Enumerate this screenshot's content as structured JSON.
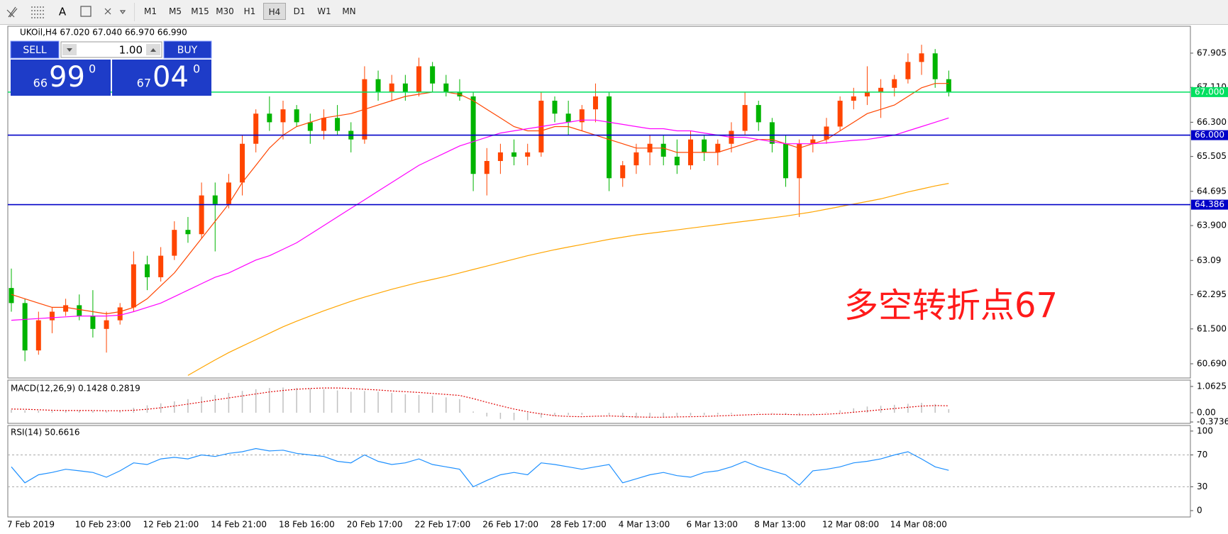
{
  "toolbar": {
    "text_tool": "A",
    "timeframes": [
      "M1",
      "M5",
      "M15",
      "M30",
      "H1",
      "H4",
      "D1",
      "W1",
      "MN"
    ],
    "active": "H4"
  },
  "trade_panel": {
    "sell": "SELL",
    "lot": "1.00",
    "buy": "BUY",
    "bid": {
      "big": "66",
      "pips": "99",
      "frac": "0"
    },
    "ask": {
      "big": "67",
      "pips": "04",
      "frac": "0"
    }
  },
  "chart_data": [
    {
      "type": "candlestick",
      "title": "UKOil,H4 67.020 67.040 66.970 66.990",
      "categories": [
        "7 Feb 2019",
        null,
        null,
        null,
        null,
        "10 Feb 23:00",
        null,
        null,
        null,
        null,
        "12 Feb 21:00",
        null,
        null,
        null,
        null,
        "14 Feb 21:00",
        null,
        null,
        null,
        null,
        "18 Feb 16:00",
        null,
        null,
        null,
        null,
        "20 Feb 17:00",
        null,
        null,
        null,
        null,
        "22 Feb 17:00",
        null,
        null,
        null,
        null,
        "26 Feb 17:00",
        null,
        null,
        null,
        null,
        "28 Feb 17:00",
        null,
        null,
        null,
        null,
        "4 Mar 13:00",
        null,
        null,
        null,
        null,
        "6 Mar 13:00",
        null,
        null,
        null,
        null,
        "8 Mar 13:00",
        null,
        null,
        null,
        null,
        "12 Mar 08:00",
        null,
        null,
        null,
        null,
        "14 Mar 08:00",
        null,
        null,
        null,
        null
      ],
      "open": [
        62.45,
        62.1,
        61.0,
        61.7,
        61.9,
        62.05,
        61.8,
        61.5,
        61.7,
        62.0,
        63.0,
        62.7,
        63.2,
        63.8,
        63.7,
        64.6,
        64.4,
        64.9,
        65.8,
        66.5,
        66.3,
        66.6,
        66.3,
        66.1,
        66.4,
        66.1,
        65.9,
        67.3,
        67.0,
        67.2,
        67.0,
        67.6,
        67.2,
        67.0,
        66.9,
        65.1,
        65.4,
        65.6,
        65.5,
        65.6,
        66.8,
        66.5,
        66.3,
        66.6,
        66.9,
        65.0,
        65.3,
        65.6,
        65.8,
        65.5,
        65.3,
        65.9,
        65.6,
        65.8,
        66.1,
        66.7,
        66.3,
        65.8,
        65.0,
        65.8,
        65.9,
        66.2,
        66.8,
        66.9,
        67.0,
        67.1,
        67.3,
        67.7,
        67.9,
        67.3
      ],
      "high": [
        62.9,
        62.2,
        61.9,
        62.0,
        62.2,
        62.3,
        62.4,
        61.9,
        62.1,
        63.3,
        63.2,
        63.4,
        64.0,
        64.1,
        64.9,
        64.9,
        65.1,
        66.0,
        66.6,
        66.9,
        66.8,
        66.7,
        66.5,
        66.6,
        66.7,
        66.3,
        67.6,
        67.5,
        67.4,
        67.4,
        67.8,
        67.7,
        67.4,
        67.3,
        67.0,
        65.7,
        65.8,
        65.9,
        65.8,
        67.0,
        66.9,
        66.8,
        66.7,
        67.2,
        67.0,
        65.4,
        65.8,
        66.0,
        66.0,
        65.9,
        66.1,
        66.0,
        65.9,
        66.3,
        67.0,
        66.8,
        66.4,
        66.0,
        65.9,
        66.0,
        66.4,
        66.9,
        67.1,
        67.6,
        67.3,
        67.4,
        67.9,
        68.1,
        68.0,
        67.5
      ],
      "low": [
        61.9,
        60.75,
        60.9,
        61.4,
        61.8,
        61.7,
        61.3,
        60.95,
        61.6,
        61.9,
        62.4,
        62.6,
        63.1,
        63.5,
        63.6,
        63.3,
        64.3,
        64.6,
        65.6,
        66.1,
        65.9,
        66.2,
        65.8,
        65.9,
        66.0,
        65.6,
        65.8,
        66.8,
        66.8,
        66.8,
        66.9,
        67.0,
        66.9,
        66.8,
        64.7,
        64.6,
        65.1,
        65.3,
        65.3,
        65.5,
        66.3,
        66.0,
        66.1,
        66.3,
        64.7,
        64.8,
        65.1,
        65.3,
        65.3,
        65.1,
        65.2,
        65.4,
        65.3,
        65.6,
        66.0,
        66.1,
        65.6,
        64.8,
        64.1,
        65.6,
        65.8,
        66.1,
        66.6,
        66.7,
        66.4,
        66.9,
        67.2,
        67.4,
        67.1,
        66.9
      ],
      "close": [
        62.1,
        61.0,
        61.7,
        61.9,
        62.05,
        61.8,
        61.5,
        61.7,
        62.0,
        63.0,
        62.7,
        63.2,
        63.8,
        63.7,
        64.6,
        64.4,
        64.9,
        65.8,
        66.5,
        66.3,
        66.6,
        66.3,
        66.1,
        66.4,
        66.1,
        65.9,
        67.3,
        67.0,
        67.2,
        67.0,
        67.6,
        67.2,
        67.0,
        66.9,
        65.1,
        65.4,
        65.6,
        65.5,
        65.6,
        66.8,
        66.5,
        66.3,
        66.6,
        66.9,
        65.0,
        65.3,
        65.6,
        65.8,
        65.5,
        65.3,
        65.9,
        65.6,
        65.8,
        66.1,
        66.7,
        66.3,
        65.8,
        65.0,
        65.8,
        65.9,
        66.2,
        66.8,
        66.9,
        67.0,
        67.1,
        67.3,
        67.7,
        67.9,
        67.3,
        66.99
      ],
      "up_color": "#ff4500",
      "down_color": "#00b400",
      "lines": [
        {
          "color": "#ff4500",
          "values": [
            62.3,
            62.2,
            62.1,
            62.0,
            62.0,
            61.95,
            61.9,
            61.85,
            61.9,
            62.0,
            62.2,
            62.5,
            62.8,
            63.2,
            63.6,
            64.0,
            64.4,
            64.9,
            65.3,
            65.7,
            66.0,
            66.2,
            66.3,
            66.4,
            66.45,
            66.5,
            66.6,
            66.7,
            66.8,
            66.9,
            66.95,
            67.0,
            67.0,
            66.95,
            66.8,
            66.6,
            66.4,
            66.2,
            66.1,
            66.1,
            66.2,
            66.2,
            66.1,
            66.0,
            65.9,
            65.8,
            65.7,
            65.7,
            65.7,
            65.6,
            65.6,
            65.6,
            65.6,
            65.7,
            65.8,
            65.9,
            65.9,
            65.8,
            65.7,
            65.8,
            65.9,
            66.1,
            66.3,
            66.5,
            66.6,
            66.7,
            66.9,
            67.1,
            67.2,
            67.2
          ]
        },
        {
          "color": "#ff00ff",
          "values": [
            61.7,
            61.72,
            61.74,
            61.76,
            61.78,
            61.8,
            61.8,
            61.8,
            61.82,
            61.9,
            62.0,
            62.1,
            62.25,
            62.4,
            62.55,
            62.7,
            62.8,
            62.95,
            63.1,
            63.2,
            63.35,
            63.5,
            63.7,
            63.9,
            64.1,
            64.3,
            64.5,
            64.7,
            64.9,
            65.1,
            65.3,
            65.45,
            65.6,
            65.75,
            65.85,
            65.95,
            66.05,
            66.1,
            66.15,
            66.2,
            66.25,
            66.3,
            66.35,
            66.35,
            66.3,
            66.25,
            66.2,
            66.15,
            66.15,
            66.1,
            66.1,
            66.05,
            66.0,
            65.95,
            65.95,
            65.9,
            65.85,
            65.8,
            65.8,
            65.8,
            65.82,
            65.85,
            65.88,
            65.9,
            65.95,
            66.0,
            66.1,
            66.2,
            66.3,
            66.4
          ]
        },
        {
          "color": "#ffa500",
          "values": [
            null,
            null,
            null,
            null,
            null,
            null,
            null,
            null,
            null,
            null,
            null,
            null,
            null,
            60.42,
            60.6,
            60.78,
            60.95,
            61.1,
            61.25,
            61.4,
            61.55,
            61.68,
            61.8,
            61.92,
            62.03,
            62.14,
            62.24,
            62.33,
            62.42,
            62.5,
            62.58,
            62.65,
            62.72,
            62.8,
            62.88,
            62.96,
            63.04,
            63.12,
            63.2,
            63.27,
            63.34,
            63.4,
            63.46,
            63.52,
            63.58,
            63.63,
            63.68,
            63.72,
            63.76,
            63.8,
            63.84,
            63.88,
            63.92,
            63.96,
            64.0,
            64.04,
            64.08,
            64.12,
            64.17,
            64.22,
            64.28,
            64.34,
            64.4,
            64.46,
            64.52,
            64.6,
            64.68,
            64.75,
            64.82,
            64.88
          ]
        }
      ],
      "levels": [
        {
          "value": 67,
          "label": "67.000",
          "color": "#00e060"
        },
        {
          "value": 66,
          "label": "66.000",
          "color": "#0000c8"
        },
        {
          "value": 64.386,
          "label": "64.386",
          "color": "#0000c8"
        }
      ],
      "annotation": "多空转折点67",
      "annotation_color": "#ff1a1a",
      "ylim": [
        60.36,
        68.53
      ],
      "yticks": [
        {
          "value": 60.69,
          "label": "60.690"
        },
        {
          "value": 61.5,
          "label": "61.500"
        },
        62.295,
        63.09,
        {
          "value": 63.9,
          "label": "63.900"
        },
        64.695,
        65.505,
        {
          "value": 66.3,
          "label": "66.300"
        },
        {
          "value": 67.11,
          "label": "67.110"
        },
        67.905
      ]
    },
    {
      "type": "macd",
      "title": "MACD(12,26,9) 0.1428 0.2819",
      "series": [
        {
          "color": "#c0c0c0",
          "values": [
            0.12,
            0.1,
            0.08,
            0.08,
            0.1,
            0.1,
            0.08,
            0.06,
            0.1,
            0.2,
            0.3,
            0.38,
            0.46,
            0.55,
            0.65,
            0.72,
            0.8,
            0.88,
            0.95,
            1.0,
            1.02,
            1.0,
            0.98,
            0.95,
            0.9,
            0.85,
            0.88,
            0.85,
            0.8,
            0.75,
            0.72,
            0.68,
            0.62,
            0.55,
            0.05,
            -0.15,
            -0.25,
            -0.3,
            -0.3,
            -0.2,
            -0.12,
            -0.1,
            -0.08,
            0.0,
            -0.1,
            -0.2,
            -0.22,
            -0.2,
            -0.18,
            -0.15,
            -0.12,
            -0.1,
            -0.08,
            -0.05,
            0.0,
            0.02,
            -0.02,
            -0.08,
            -0.12,
            -0.05,
            0.02,
            0.1,
            0.18,
            0.25,
            0.28,
            0.32,
            0.36,
            0.4,
            0.35,
            0.1428
          ]
        },
        {
          "color": "#e00000",
          "values": [
            0.15,
            0.14,
            0.12,
            0.1,
            0.09,
            0.09,
            0.09,
            0.08,
            0.08,
            0.1,
            0.14,
            0.2,
            0.27,
            0.35,
            0.43,
            0.52,
            0.6,
            0.68,
            0.76,
            0.84,
            0.9,
            0.95,
            0.98,
            1.0,
            1.0,
            0.98,
            0.95,
            0.92,
            0.88,
            0.85,
            0.82,
            0.78,
            0.74,
            0.7,
            0.57,
            0.42,
            0.28,
            0.15,
            0.04,
            -0.05,
            -0.12,
            -0.15,
            -0.16,
            -0.14,
            -0.13,
            -0.15,
            -0.17,
            -0.18,
            -0.18,
            -0.17,
            -0.16,
            -0.15,
            -0.13,
            -0.11,
            -0.09,
            -0.07,
            -0.06,
            -0.07,
            -0.08,
            -0.08,
            -0.06,
            -0.03,
            0.02,
            0.07,
            0.12,
            0.17,
            0.22,
            0.27,
            0.29,
            0.2819
          ]
        }
      ],
      "ylim": [
        -0.43,
        1.29
      ],
      "yticks": [
        -0.3736,
        {
          "value": 0,
          "label": "0.00"
        },
        1.0625
      ]
    },
    {
      "type": "line",
      "title": "RSI(14) 50.6616",
      "color": "#1e90ff",
      "values": [
        55,
        35,
        45,
        48,
        52,
        50,
        48,
        42,
        50,
        60,
        58,
        65,
        67,
        65,
        70,
        68,
        72,
        74,
        78,
        75,
        76,
        72,
        70,
        68,
        62,
        60,
        70,
        62,
        58,
        60,
        65,
        58,
        55,
        52,
        30,
        38,
        45,
        48,
        45,
        60,
        58,
        55,
        52,
        55,
        58,
        35,
        40,
        45,
        48,
        44,
        42,
        48,
        50,
        55,
        62,
        55,
        50,
        45,
        32,
        50,
        52,
        55,
        60,
        62,
        65,
        70,
        74,
        65,
        55,
        50.6616
      ],
      "levels": [
        70,
        30
      ],
      "ylim": [
        -8,
        107
      ],
      "yticks": [
        0,
        30,
        70,
        100
      ]
    }
  ]
}
